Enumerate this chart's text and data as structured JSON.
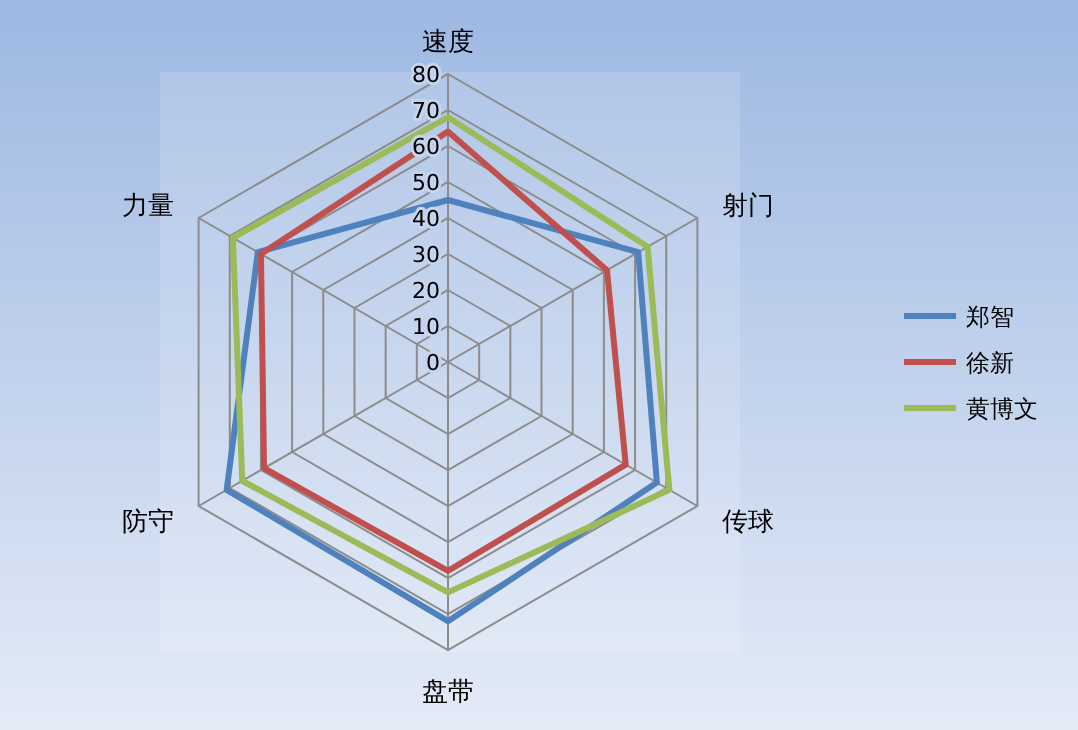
{
  "chart_data": {
    "type": "radar",
    "categories": [
      "速度",
      "射门",
      "传球",
      "盘带",
      "防守",
      "力量"
    ],
    "ylim": [
      0,
      80
    ],
    "yticks": [
      0,
      10,
      20,
      30,
      40,
      50,
      60,
      70,
      80
    ],
    "legend": "right",
    "grid": true,
    "series": [
      {
        "name": "郑智",
        "color": "#4f81bd",
        "values": [
          45,
          61,
          67,
          72,
          71,
          61
        ]
      },
      {
        "name": "徐新",
        "color": "#c0504d",
        "values": [
          64,
          51,
          57,
          58,
          59,
          60
        ]
      },
      {
        "name": "黄博文",
        "color": "#9bbb59",
        "values": [
          68,
          64,
          71,
          64,
          66,
          69
        ]
      }
    ]
  }
}
